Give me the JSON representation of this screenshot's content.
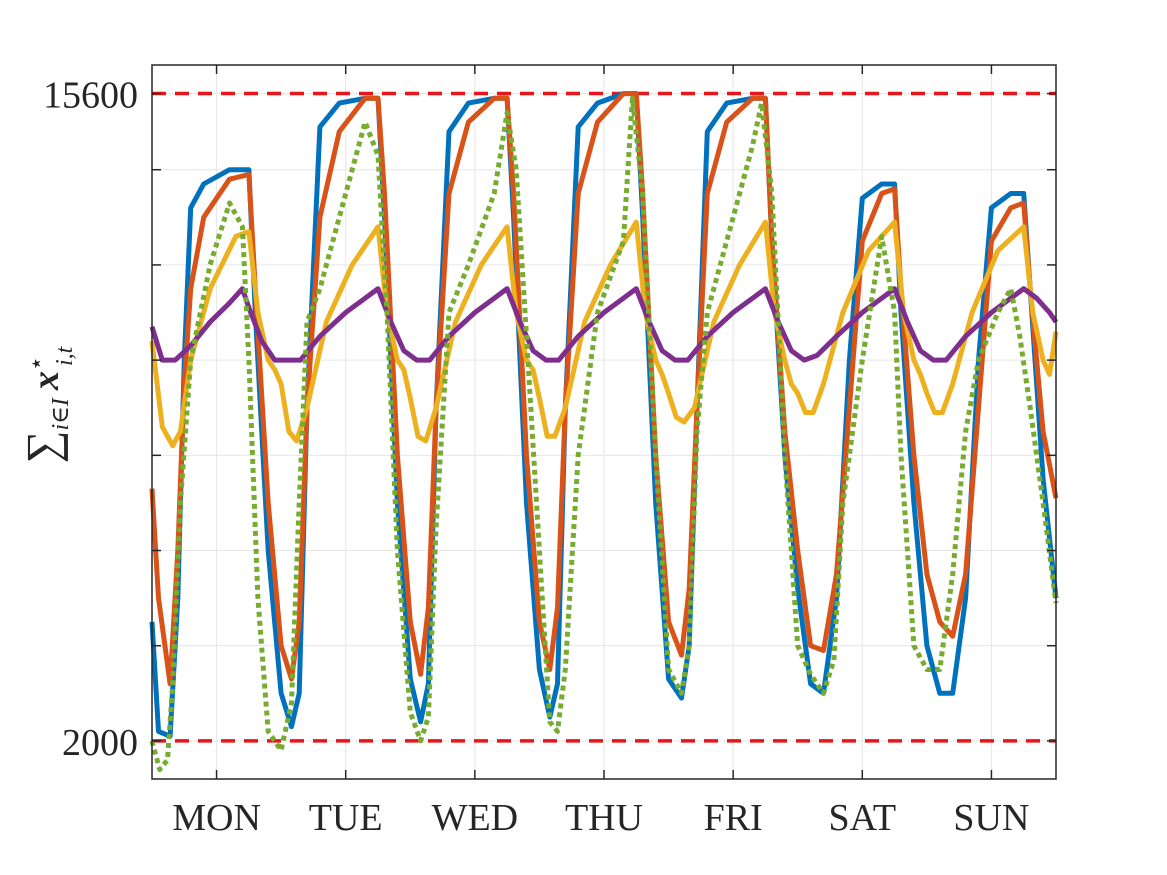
{
  "chart_data": {
    "type": "line",
    "title": "",
    "xlabel": "",
    "ylabel": "∑i∈I x*i,t",
    "ylabel_parts": {
      "sum": "∑",
      "sub": "i∈I",
      "var": "x",
      "sup": "⋆",
      "varsub": "i,t"
    },
    "xlim": [
      0,
      7
    ],
    "ylim": [
      1200,
      16200
    ],
    "ytick_labels": [
      {
        "value": 15600,
        "label": "15600"
      },
      {
        "value": 2000,
        "label": "2000"
      }
    ],
    "yticks_unlabeled": [
      4000,
      6000,
      8000,
      10000,
      12000,
      14000
    ],
    "xtick_labels": [
      {
        "x": 0.5,
        "label": "MON"
      },
      {
        "x": 1.5,
        "label": "TUE"
      },
      {
        "x": 2.5,
        "label": "WED"
      },
      {
        "x": 3.5,
        "label": "THU"
      },
      {
        "x": 4.5,
        "label": "FRI"
      },
      {
        "x": 5.5,
        "label": "SAT"
      },
      {
        "x": 6.5,
        "label": "SUN"
      }
    ],
    "grid": true,
    "reference_lines": [
      {
        "y": 15600,
        "color": "#e8161b",
        "style": "dashed"
      },
      {
        "y": 2000,
        "color": "#e8161b",
        "style": "dashed"
      }
    ],
    "series": [
      {
        "color": "#0072BD",
        "style": "solid",
        "x": [
          0,
          0.05,
          0.14,
          0.2,
          0.25,
          0.3,
          0.4,
          0.6,
          0.75,
          0.8,
          0.9,
          1.0,
          1.08,
          1.14,
          1.2,
          1.3,
          1.45,
          1.65,
          1.75,
          1.8,
          1.9,
          2.0,
          2.08,
          2.14,
          2.2,
          2.3,
          2.45,
          2.65,
          2.75,
          2.8,
          2.9,
          3.0,
          3.08,
          3.14,
          3.2,
          3.3,
          3.45,
          3.65,
          3.75,
          3.8,
          3.9,
          4.0,
          4.1,
          4.16,
          4.22,
          4.3,
          4.45,
          4.65,
          4.75,
          4.8,
          4.9,
          5.0,
          5.1,
          5.2,
          5.3,
          5.4,
          5.5,
          5.65,
          5.75,
          5.8,
          5.9,
          6.0,
          6.1,
          6.2,
          6.3,
          6.4,
          6.5,
          6.65,
          6.75,
          6.8,
          6.9,
          7.0
        ],
        "y": [
          4500,
          2200,
          2100,
          5000,
          10000,
          13200,
          13700,
          14000,
          14000,
          11000,
          6000,
          3000,
          2300,
          3000,
          9000,
          14900,
          15400,
          15500,
          15500,
          13000,
          7000,
          3300,
          2400,
          3200,
          9000,
          14800,
          15400,
          15500,
          15500,
          13000,
          7000,
          3500,
          2500,
          3200,
          9000,
          14900,
          15400,
          15600,
          15600,
          13000,
          7000,
          3300,
          2900,
          4000,
          9000,
          14800,
          15400,
          15500,
          15500,
          12500,
          8000,
          5200,
          3200,
          3000,
          5000,
          10000,
          13400,
          13700,
          13700,
          11000,
          7000,
          4000,
          3000,
          3000,
          5000,
          10000,
          13200,
          13500,
          13500,
          11500,
          7500,
          5000
        ]
      },
      {
        "color": "#D95319",
        "style": "solid",
        "x": [
          0,
          0.05,
          0.14,
          0.2,
          0.25,
          0.3,
          0.4,
          0.6,
          0.75,
          0.8,
          0.9,
          1.0,
          1.08,
          1.14,
          1.2,
          1.3,
          1.45,
          1.65,
          1.75,
          1.8,
          1.9,
          2.0,
          2.08,
          2.14,
          2.2,
          2.3,
          2.45,
          2.65,
          2.75,
          2.8,
          2.9,
          3.0,
          3.08,
          3.14,
          3.2,
          3.3,
          3.45,
          3.65,
          3.75,
          3.8,
          3.9,
          4.0,
          4.1,
          4.16,
          4.22,
          4.3,
          4.45,
          4.65,
          4.75,
          4.8,
          4.9,
          5.0,
          5.1,
          5.2,
          5.3,
          5.4,
          5.5,
          5.65,
          5.75,
          5.8,
          5.9,
          6.0,
          6.1,
          6.2,
          6.3,
          6.4,
          6.5,
          6.65,
          6.75,
          6.8,
          6.9,
          7.0
        ],
        "y": [
          7300,
          5000,
          3200,
          6000,
          9500,
          11500,
          13000,
          13800,
          13900,
          11500,
          7000,
          4000,
          3300,
          4500,
          9000,
          13000,
          14800,
          15500,
          15500,
          13500,
          8000,
          4500,
          3400,
          4800,
          9000,
          13500,
          15000,
          15500,
          15500,
          13500,
          8000,
          4500,
          3500,
          4800,
          9000,
          13500,
          15000,
          15600,
          15600,
          13500,
          8000,
          4500,
          3800,
          5200,
          9000,
          13500,
          15000,
          15500,
          15500,
          12500,
          8500,
          6000,
          4000,
          3900,
          5500,
          9000,
          12500,
          13500,
          13600,
          11500,
          8000,
          5500,
          4500,
          4200,
          5500,
          9000,
          12500,
          13200,
          13300,
          11500,
          8500,
          7100
        ]
      },
      {
        "color": "#EDB120",
        "style": "solid",
        "x": [
          0,
          0.08,
          0.16,
          0.22,
          0.3,
          0.45,
          0.65,
          0.75,
          0.82,
          0.9,
          0.95,
          1.0,
          1.06,
          1.12,
          1.2,
          1.35,
          1.55,
          1.75,
          1.82,
          1.9,
          1.95,
          2.0,
          2.06,
          2.12,
          2.2,
          2.35,
          2.55,
          2.75,
          2.82,
          2.9,
          2.95,
          3.0,
          3.06,
          3.12,
          3.2,
          3.35,
          3.55,
          3.75,
          3.82,
          3.9,
          3.95,
          4.0,
          4.06,
          4.12,
          4.2,
          4.35,
          4.55,
          4.75,
          4.82,
          4.9,
          4.95,
          5.0,
          5.06,
          5.12,
          5.2,
          5.35,
          5.55,
          5.75,
          5.82,
          5.9,
          5.95,
          6.0,
          6.06,
          6.12,
          6.2,
          6.35,
          6.55,
          6.75,
          6.82,
          6.9,
          6.95,
          7.0
        ],
        "y": [
          10400,
          8600,
          8200,
          8500,
          10000,
          11500,
          12600,
          12700,
          11000,
          10000,
          9800,
          9500,
          8500,
          8300,
          9000,
          10800,
          12000,
          12800,
          11000,
          10000,
          9800,
          9200,
          8400,
          8300,
          9000,
          10800,
          12000,
          12800,
          11000,
          10000,
          9800,
          9200,
          8400,
          8400,
          9000,
          10800,
          12000,
          12900,
          11000,
          10000,
          9700,
          9300,
          8800,
          8700,
          9000,
          10800,
          12000,
          12900,
          11000,
          10000,
          9500,
          9300,
          8900,
          8900,
          9500,
          11000,
          12300,
          12900,
          11000,
          10000,
          9700,
          9300,
          8900,
          8900,
          9500,
          11000,
          12300,
          12800,
          11000,
          10000,
          9700,
          10600
        ]
      },
      {
        "color": "#7E2F8E",
        "style": "solid",
        "x": [
          0,
          0.08,
          0.18,
          0.3,
          0.45,
          0.6,
          0.7,
          0.75,
          0.85,
          0.95,
          1.05,
          1.15,
          1.3,
          1.5,
          1.65,
          1.75,
          1.85,
          1.95,
          2.05,
          2.15,
          2.3,
          2.5,
          2.65,
          2.75,
          2.85,
          2.95,
          3.05,
          3.15,
          3.3,
          3.5,
          3.65,
          3.75,
          3.85,
          3.95,
          4.05,
          4.15,
          4.3,
          4.5,
          4.65,
          4.75,
          4.85,
          4.95,
          5.05,
          5.15,
          5.3,
          5.5,
          5.65,
          5.75,
          5.85,
          5.95,
          6.05,
          6.15,
          6.3,
          6.5,
          6.65,
          6.75,
          6.85,
          6.95,
          7.0
        ],
        "y": [
          10700,
          10000,
          10000,
          10300,
          10800,
          11200,
          11500,
          11100,
          10400,
          10000,
          10000,
          10000,
          10500,
          11000,
          11300,
          11500,
          10800,
          10200,
          10000,
          10000,
          10500,
          11000,
          11300,
          11500,
          10800,
          10200,
          10000,
          10000,
          10500,
          11000,
          11300,
          11500,
          10800,
          10200,
          10000,
          10000,
          10500,
          11000,
          11300,
          11500,
          10800,
          10200,
          10000,
          10100,
          10500,
          11000,
          11300,
          11500,
          10800,
          10200,
          10000,
          10000,
          10500,
          11000,
          11300,
          11500,
          11300,
          11000,
          10800
        ]
      },
      {
        "color": "#77AC30",
        "style": "dotted",
        "x": [
          0,
          0.06,
          0.12,
          0.16,
          0.22,
          0.3,
          0.45,
          0.6,
          0.7,
          0.75,
          0.82,
          0.9,
          1.0,
          1.08,
          1.14,
          1.2,
          1.3,
          1.45,
          1.65,
          1.75,
          1.82,
          1.9,
          2.0,
          2.08,
          2.14,
          2.2,
          2.3,
          2.45,
          2.65,
          2.75,
          2.82,
          2.9,
          3.0,
          3.08,
          3.14,
          3.2,
          3.3,
          3.45,
          3.65,
          3.72,
          3.8,
          3.9,
          4.0,
          4.1,
          4.16,
          4.22,
          4.3,
          4.45,
          4.65,
          4.72,
          4.8,
          4.9,
          5.0,
          5.1,
          5.2,
          5.28,
          5.35,
          5.5,
          5.65,
          5.75,
          5.8,
          5.9,
          6.0,
          6.1,
          6.2,
          6.3,
          6.4,
          6.55,
          6.65,
          6.72,
          6.8,
          6.9,
          7.0
        ],
        "y": [
          2000,
          1400,
          1600,
          3200,
          7000,
          10000,
          12000,
          13300,
          12800,
          10000,
          5000,
          2200,
          1800,
          2800,
          7000,
          10800,
          11500,
          13000,
          15000,
          14300,
          11000,
          6000,
          2600,
          2000,
          2500,
          6500,
          11000,
          12000,
          13500,
          15200,
          14000,
          10500,
          6000,
          2400,
          2200,
          3500,
          8000,
          11000,
          12500,
          15500,
          13500,
          8000,
          3500,
          3000,
          4000,
          8500,
          11000,
          12500,
          14500,
          15400,
          13500,
          8000,
          4000,
          3400,
          3000,
          3700,
          7000,
          10000,
          12600,
          11000,
          8000,
          4000,
          3500,
          3500,
          5500,
          8500,
          10000,
          11000,
          11500,
          10500,
          9000,
          7000,
          4900
        ]
      }
    ]
  }
}
